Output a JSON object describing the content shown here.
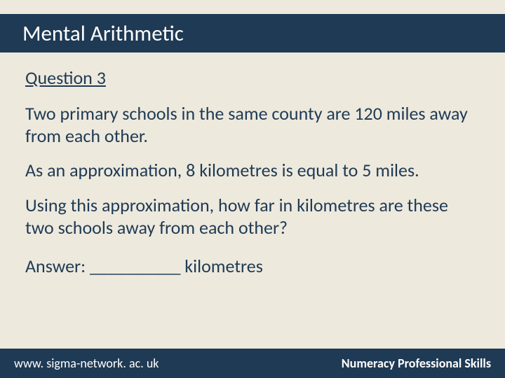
{
  "header": {
    "title": "Mental Arithmetic"
  },
  "question": {
    "label": "Question 3",
    "paragraph1": "Two primary schools in the same county are 120 miles away from each other.",
    "paragraph2": "As an approximation, 8 kilometres is equal to 5 miles.",
    "paragraph3": "Using this approximation, how far in kilometres are these two schools away from each other?",
    "answer_prefix": "Answer: __________ kilometres"
  },
  "footer": {
    "left": "www. sigma-network. ac. uk",
    "right": "Numeracy Professional Skills"
  },
  "colors": {
    "band": "#1f3a54",
    "background": "#ede9dd",
    "band_text": "#ffffff",
    "body_text": "#1f3a54"
  }
}
